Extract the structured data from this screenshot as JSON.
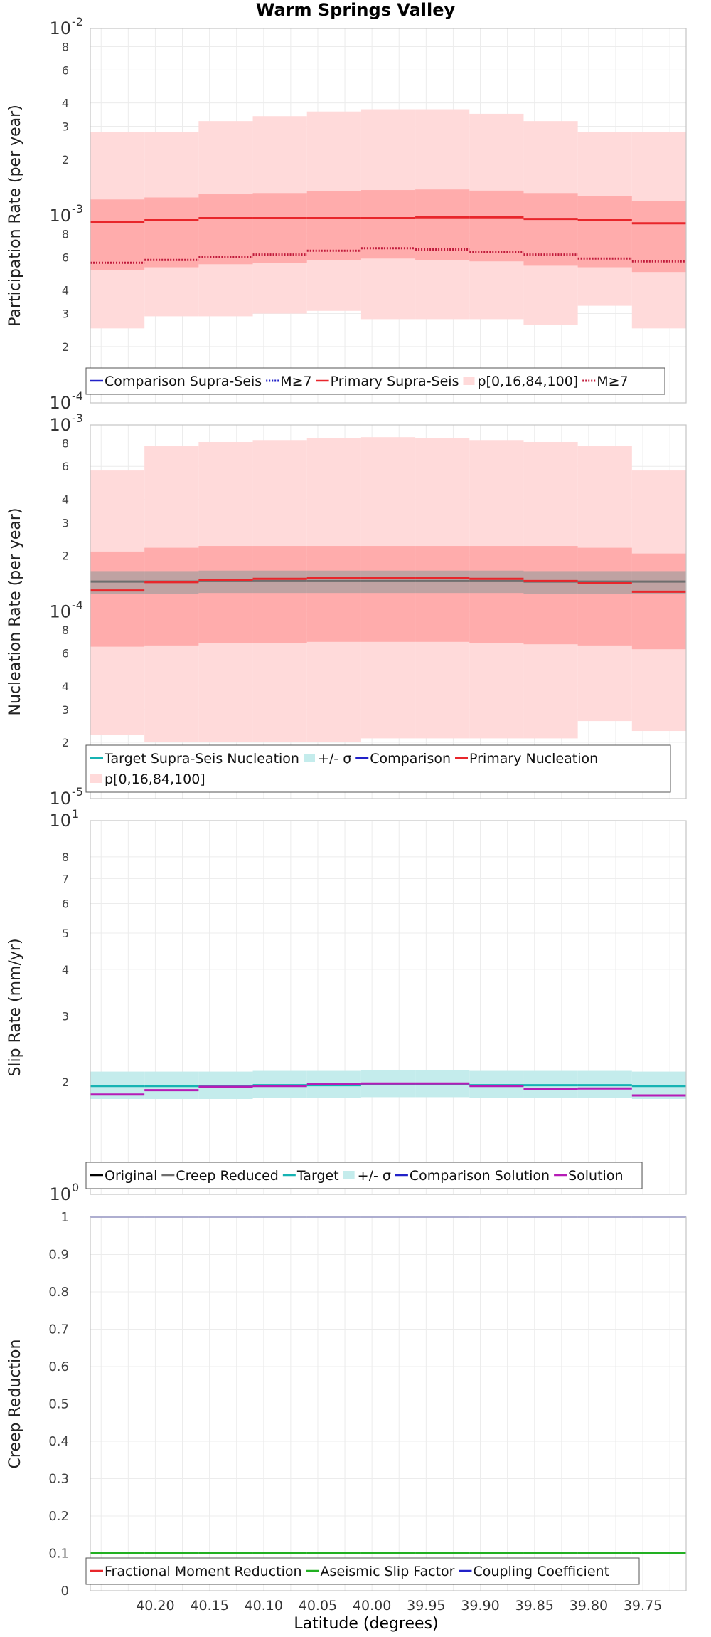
{
  "figure_title": "Warm Springs Valley",
  "xlabel": "Latitude (degrees)",
  "colors": {
    "primary": "#e8262b",
    "primary_band": "#ff9c9c",
    "outer_band": "#ffdada",
    "comparison": "#2121c8",
    "target": "#16b3b3",
    "target_band": "#c4ecec",
    "creep_reduced": "#6e6e6e",
    "solution": "#b61cb6",
    "aseismic": "#22b022",
    "grid": "#ececec",
    "frame": "#c4c4c4"
  },
  "chart_data": [
    {
      "type": "line",
      "title": "Warm Springs Valley",
      "ylabel": "Participation Rate (per year)",
      "xlabel": "Latitude (degrees)",
      "yscale": "log",
      "ylim": [
        0.0001,
        0.01
      ],
      "x_bins": [
        40.26,
        40.21,
        40.16,
        40.11,
        40.06,
        40.01,
        39.96,
        39.91,
        39.86,
        39.81,
        39.76,
        39.71
      ],
      "series": [
        {
          "name": "p[0,16,84,100] outer",
          "role": "outer_band",
          "low": [
            0.00025,
            0.00029,
            0.00029,
            0.0003,
            0.00031,
            0.00028,
            0.00028,
            0.00028,
            0.00026,
            0.00033,
            0.00025
          ],
          "high": [
            0.0028,
            0.0028,
            0.0032,
            0.0034,
            0.0036,
            0.0037,
            0.0037,
            0.0035,
            0.0032,
            0.0028,
            0.0028
          ]
        },
        {
          "name": "p[0,16,84,100] inner",
          "role": "inner_band",
          "low": [
            0.00051,
            0.00053,
            0.00055,
            0.00056,
            0.00058,
            0.00059,
            0.00058,
            0.00057,
            0.00054,
            0.00053,
            0.0005
          ],
          "high": [
            0.00122,
            0.00125,
            0.0013,
            0.00132,
            0.00135,
            0.00137,
            0.00138,
            0.00136,
            0.00132,
            0.00127,
            0.0012
          ]
        },
        {
          "name": "Primary Supra-Seis",
          "role": "primary",
          "style": "solid",
          "values": [
            0.00092,
            0.00095,
            0.00097,
            0.00097,
            0.00097,
            0.00097,
            0.00098,
            0.00098,
            0.00096,
            0.00095,
            0.00091
          ]
        },
        {
          "name": "M≥7",
          "role": "primary",
          "style": "dotted",
          "values": [
            0.00056,
            0.00058,
            0.0006,
            0.00062,
            0.00065,
            0.00067,
            0.00066,
            0.00064,
            0.00062,
            0.00059,
            0.00057
          ]
        }
      ],
      "legend": [
        {
          "label": "Comparison Supra-Seis",
          "color": "comparison",
          "kind": "line"
        },
        {
          "label": "M≥7",
          "color": "comparison",
          "kind": "dotted"
        },
        {
          "label": "Primary Supra-Seis",
          "color": "primary",
          "kind": "line"
        },
        {
          "label": "p[0,16,84,100]",
          "color": "outer_band",
          "kind": "box"
        },
        {
          "label": "M≥7",
          "color": "primary",
          "kind": "dotted"
        }
      ]
    },
    {
      "type": "line",
      "ylabel": "Nucleation Rate (per year)",
      "yscale": "log",
      "ylim": [
        1e-05,
        0.001
      ],
      "x_bins": [
        40.26,
        40.21,
        40.16,
        40.11,
        40.06,
        40.01,
        39.96,
        39.91,
        39.86,
        39.81,
        39.76,
        39.71
      ],
      "series": [
        {
          "name": "p[0,16,84,100] outer",
          "role": "outer_band",
          "low": [
            2.2e-05,
            2e-05,
            2e-05,
            2e-05,
            2e-05,
            2.1e-05,
            2.1e-05,
            2.1e-05,
            2.1e-05,
            2.6e-05,
            2.3e-05
          ],
          "high": [
            0.00057,
            0.00077,
            0.00081,
            0.00083,
            0.00085,
            0.00086,
            0.00085,
            0.00083,
            0.00081,
            0.00077,
            0.00057
          ]
        },
        {
          "name": "p[0,16,84,100] inner",
          "role": "inner_band",
          "low": [
            6.5e-05,
            6.6e-05,
            6.8e-05,
            6.8e-05,
            6.9e-05,
            6.9e-05,
            6.9e-05,
            6.8e-05,
            6.7e-05,
            6.6e-05,
            6.3e-05
          ],
          "high": [
            0.00021,
            0.00022,
            0.000225,
            0.000225,
            0.000225,
            0.000225,
            0.000225,
            0.000225,
            0.000225,
            0.00022,
            0.000205
          ]
        },
        {
          "name": "+/- σ",
          "role": "target_band",
          "low": [
            0.000125,
            0.000125,
            0.000126,
            0.000126,
            0.000126,
            0.000126,
            0.000126,
            0.000126,
            0.000125,
            0.000125,
            0.000125
          ],
          "high": [
            0.000165,
            0.000165,
            0.000166,
            0.000166,
            0.000166,
            0.000166,
            0.000166,
            0.000166,
            0.000165,
            0.000165,
            0.000165
          ]
        },
        {
          "name": "Target Supra-Seis Nucleation",
          "role": "target_line",
          "style": "solid",
          "values": [
            0.000145,
            0.000145,
            0.000146,
            0.000146,
            0.000146,
            0.000146,
            0.000146,
            0.000146,
            0.000145,
            0.000145,
            0.000145
          ]
        },
        {
          "name": "Primary Nucleation",
          "role": "primary",
          "style": "solid",
          "values": [
            0.00013,
            0.000144,
            0.000148,
            0.00015,
            0.000151,
            0.000151,
            0.000151,
            0.00015,
            0.000146,
            0.000142,
            0.000128
          ]
        }
      ],
      "legend": [
        {
          "label": "Target Supra-Seis Nucleation",
          "color": "target",
          "kind": "line"
        },
        {
          "label": "+/- σ",
          "color": "target_band",
          "kind": "box"
        },
        {
          "label": "Comparison",
          "color": "comparison",
          "kind": "line"
        },
        {
          "label": "Primary Nucleation",
          "color": "primary",
          "kind": "line"
        },
        {
          "label": "p[0,16,84,100]",
          "color": "outer_band",
          "kind": "box"
        }
      ]
    },
    {
      "type": "line",
      "ylabel": "Slip Rate (mm/yr)",
      "yscale": "log",
      "ylim": [
        1,
        10
      ],
      "x_bins": [
        40.26,
        40.21,
        40.16,
        40.11,
        40.06,
        40.01,
        39.96,
        39.91,
        39.86,
        39.81,
        39.76,
        39.71
      ],
      "series": [
        {
          "name": "+/- σ",
          "role": "target_band",
          "low": [
            1.8,
            1.8,
            1.8,
            1.81,
            1.81,
            1.82,
            1.82,
            1.81,
            1.81,
            1.81,
            1.8
          ],
          "high": [
            2.13,
            2.13,
            2.13,
            2.14,
            2.14,
            2.15,
            2.15,
            2.14,
            2.14,
            2.14,
            2.13
          ]
        },
        {
          "name": "Target",
          "role": "target_line",
          "style": "solid",
          "values": [
            1.95,
            1.95,
            1.95,
            1.96,
            1.96,
            1.97,
            1.97,
            1.96,
            1.96,
            1.96,
            1.95
          ]
        },
        {
          "name": "Solution",
          "role": "solution",
          "style": "solid",
          "values": [
            1.85,
            1.9,
            1.94,
            1.95,
            1.97,
            1.98,
            1.98,
            1.95,
            1.91,
            1.92,
            1.84
          ]
        }
      ],
      "legend": [
        {
          "label": "Original",
          "color": "#000000",
          "kind": "line"
        },
        {
          "label": "Creep Reduced",
          "color": "creep_reduced",
          "kind": "line"
        },
        {
          "label": "Target",
          "color": "target",
          "kind": "line"
        },
        {
          "label": "+/- σ",
          "color": "target_band",
          "kind": "box"
        },
        {
          "label": "Comparison Solution",
          "color": "comparison",
          "kind": "line"
        },
        {
          "label": "Solution",
          "color": "solution",
          "kind": "line"
        }
      ]
    },
    {
      "type": "line",
      "ylabel": "Creep Reduction",
      "yscale": "linear",
      "ylim": [
        0,
        1
      ],
      "x_bins": [
        40.26,
        40.21,
        40.16,
        40.11,
        40.06,
        40.01,
        39.96,
        39.91,
        39.86,
        39.81,
        39.76,
        39.71
      ],
      "series": [
        {
          "name": "Coupling Coefficient",
          "role": "coupling",
          "style": "solid",
          "values": [
            1,
            1,
            1,
            1,
            1,
            1,
            1,
            1,
            1,
            1,
            1
          ]
        },
        {
          "name": "Aseismic Slip Factor",
          "role": "aseismic",
          "style": "solid",
          "values": [
            0.1,
            0.1,
            0.1,
            0.1,
            0.1,
            0.1,
            0.1,
            0.1,
            0.1,
            0.1,
            0.1
          ]
        }
      ],
      "legend": [
        {
          "label": "Fractional Moment Reduction",
          "color": "primary",
          "kind": "line"
        },
        {
          "label": "Aseismic Slip Factor",
          "color": "aseismic",
          "kind": "line"
        },
        {
          "label": "Coupling Coefficient",
          "color": "comparison",
          "kind": "line"
        }
      ]
    }
  ],
  "x_axis": {
    "xlim": [
      40.26,
      39.71
    ],
    "ticks": [
      "40.20",
      "40.15",
      "40.10",
      "40.05",
      "40.00",
      "39.95",
      "39.90",
      "39.85",
      "39.80",
      "39.75"
    ],
    "tick_values": [
      40.2,
      40.15,
      40.1,
      40.05,
      40.0,
      39.95,
      39.9,
      39.85,
      39.8,
      39.75
    ],
    "minor_values": [
      40.25,
      40.225,
      40.175,
      40.125,
      40.075,
      40.025,
      39.975,
      39.925,
      39.875,
      39.825,
      39.775,
      39.725
    ]
  },
  "y_ticks": [
    {
      "labels": [
        {
          "v": 0.01,
          "base": "10",
          "exp": "-2"
        },
        {
          "v": 0.008,
          "t": "8"
        },
        {
          "v": 0.006,
          "t": "6"
        },
        {
          "v": 0.004,
          "t": "4"
        },
        {
          "v": 0.003,
          "t": "3"
        },
        {
          "v": 0.002,
          "t": "2"
        },
        {
          "v": 0.001,
          "base": "10",
          "exp": "-3"
        },
        {
          "v": 0.0008,
          "t": "8"
        },
        {
          "v": 0.0006,
          "t": "6"
        },
        {
          "v": 0.0004,
          "t": "4"
        },
        {
          "v": 0.0003,
          "t": "3"
        },
        {
          "v": 0.0002,
          "t": "2"
        },
        {
          "v": 0.0001,
          "base": "10",
          "exp": "-4"
        }
      ]
    },
    {
      "labels": [
        {
          "v": 0.001,
          "base": "10",
          "exp": "-3"
        },
        {
          "v": 0.0008,
          "t": "8"
        },
        {
          "v": 0.0006,
          "t": "6"
        },
        {
          "v": 0.0004,
          "t": "4"
        },
        {
          "v": 0.0003,
          "t": "3"
        },
        {
          "v": 0.0002,
          "t": "2"
        },
        {
          "v": 0.0001,
          "base": "10",
          "exp": "-4"
        },
        {
          "v": 8e-05,
          "t": "8"
        },
        {
          "v": 6e-05,
          "t": "6"
        },
        {
          "v": 4e-05,
          "t": "4"
        },
        {
          "v": 3e-05,
          "t": "3"
        },
        {
          "v": 2e-05,
          "t": "2"
        },
        {
          "v": 1e-05,
          "base": "10",
          "exp": "-5"
        }
      ]
    },
    {
      "labels": [
        {
          "v": 10,
          "base": "10",
          "exp": "1"
        },
        {
          "v": 8,
          "t": "8"
        },
        {
          "v": 7,
          "t": "7"
        },
        {
          "v": 6,
          "t": "6"
        },
        {
          "v": 5,
          "t": "5"
        },
        {
          "v": 4,
          "t": "4"
        },
        {
          "v": 3,
          "t": "3"
        },
        {
          "v": 2,
          "t": "2"
        },
        {
          "v": 1,
          "base": "10",
          "exp": "0"
        }
      ]
    },
    {
      "labels": [
        {
          "v": 1,
          "t": "1"
        },
        {
          "v": 0.9,
          "t": "0.9"
        },
        {
          "v": 0.8,
          "t": "0.8"
        },
        {
          "v": 0.7,
          "t": "0.7"
        },
        {
          "v": 0.6,
          "t": "0.6"
        },
        {
          "v": 0.5,
          "t": "0.5"
        },
        {
          "v": 0.4,
          "t": "0.4"
        },
        {
          "v": 0.3,
          "t": "0.3"
        },
        {
          "v": 0.2,
          "t": "0.2"
        },
        {
          "v": 0.1,
          "t": "0.1"
        },
        {
          "v": 0,
          "t": "0"
        }
      ]
    }
  ]
}
